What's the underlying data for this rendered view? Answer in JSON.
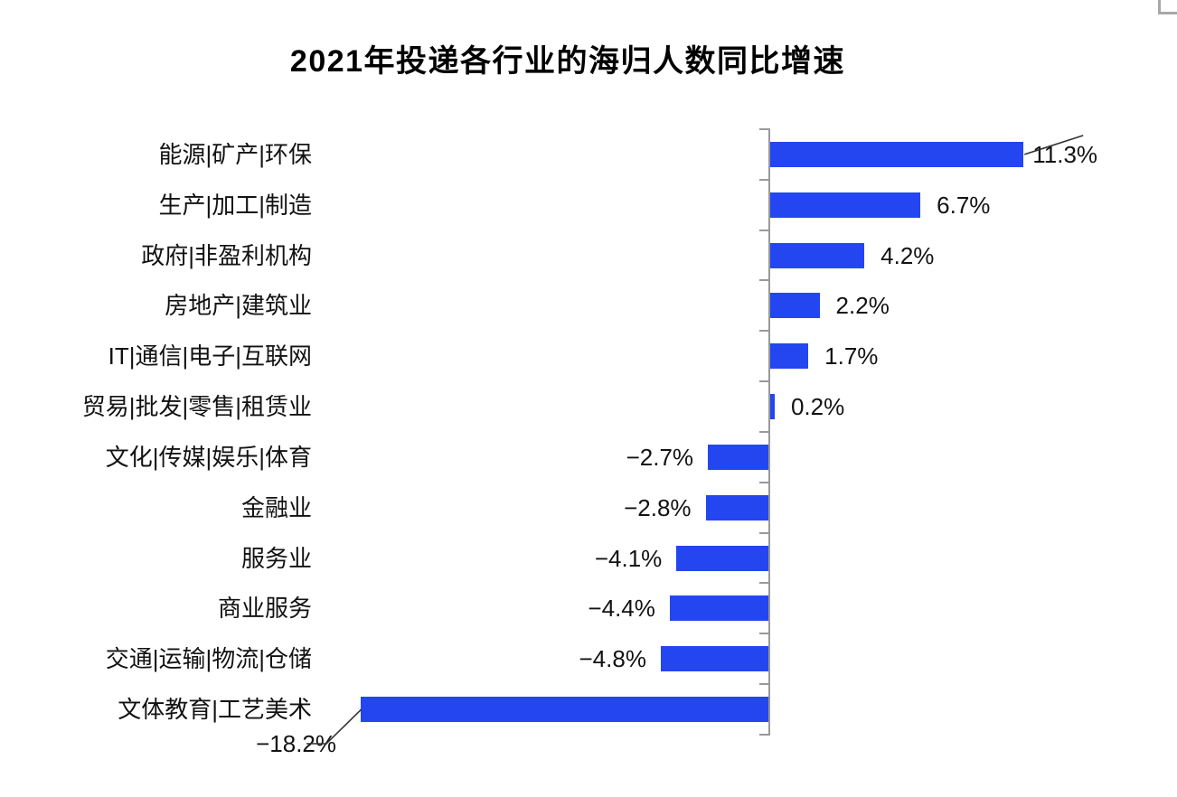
{
  "chart_data": {
    "type": "bar",
    "orientation": "horizontal",
    "title": "2021年投递各行业的海归人数同比增速",
    "unit": "%",
    "categories": [
      "能源|矿产|环保",
      "生产|加工|制造",
      "政府|非盈利机构",
      "房地产|建筑业",
      "IT|通信|电子|互联网",
      "贸易|批发|零售|租赁业",
      "文化|传媒|娱乐|体育",
      "金融业",
      "服务业",
      "商业服务",
      "交通|运输|物流|仓储",
      "文体教育|工艺美术"
    ],
    "values": [
      11.3,
      6.7,
      4.2,
      2.2,
      1.7,
      0.2,
      -2.7,
      -2.8,
      -4.1,
      -4.4,
      -4.8,
      -18.2
    ],
    "value_labels": [
      "11.3%",
      "6.7%",
      "4.2%",
      "2.2%",
      "1.7%",
      "0.2%",
      "−2.7%",
      "−2.8%",
      "−4.1%",
      "−4.4%",
      "−4.8%",
      "−18.2%"
    ],
    "xlim": [
      -18.2,
      11.3
    ],
    "grid": false,
    "legend": false,
    "bar_color": "#2346f0",
    "axis_color": "#999999",
    "text_color": "#121212",
    "leader_line_color": "#333333",
    "callouts": [
      "11.3%",
      "−18.2%"
    ]
  },
  "decorations": {
    "corner_bracket_color": "#a8a8a8"
  }
}
